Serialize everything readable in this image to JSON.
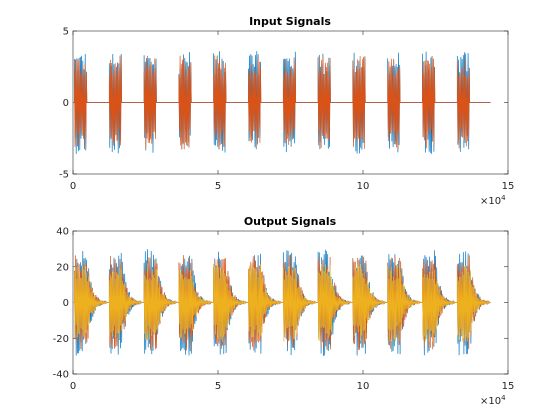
{
  "chart_data": [
    {
      "type": "line",
      "title": "Input Signals",
      "xlabel": "",
      "ylabel": "",
      "xlim": [
        0,
        150000
      ],
      "ylim": [
        -5,
        5
      ],
      "x_ticks": [
        0,
        5,
        10,
        15
      ],
      "x_tick_labels": [
        "0",
        "5",
        "10",
        "15"
      ],
      "x_exponent_label": "×10",
      "x_exponent_power": "4",
      "y_ticks": [
        -5,
        0,
        5
      ],
      "y_tick_labels": [
        "-5",
        "0",
        "5"
      ],
      "x_end": 144000,
      "burst_starts": [
        0,
        12000,
        24000,
        36000,
        48000,
        60000,
        72000,
        84000,
        96000,
        108000,
        120000,
        132000
      ],
      "burst_duration": 4300,
      "series": [
        {
          "color": "#0072BD",
          "amplitude": 3.6,
          "decay": 0.0
        },
        {
          "color": "#D95319",
          "amplitude": 3.3,
          "decay": 0.0
        }
      ]
    },
    {
      "type": "line",
      "title": "Output Signals",
      "xlabel": "",
      "ylabel": "",
      "xlim": [
        0,
        150000
      ],
      "ylim": [
        -40,
        40
      ],
      "x_ticks": [
        0,
        5,
        10,
        15
      ],
      "x_tick_labels": [
        "0",
        "5",
        "10",
        "15"
      ],
      "x_exponent_label": "×10",
      "x_exponent_power": "4",
      "y_ticks": [
        -40,
        -20,
        0,
        20,
        40
      ],
      "y_tick_labels": [
        "-40",
        "-20",
        "0",
        "20",
        "40"
      ],
      "x_end": 144000,
      "burst_starts": [
        0,
        12000,
        24000,
        36000,
        48000,
        60000,
        72000,
        84000,
        96000,
        108000,
        120000,
        132000
      ],
      "burst_duration": 4300,
      "tail_duration": 7000,
      "series": [
        {
          "color": "#0072BD",
          "amplitude": 30
        },
        {
          "color": "#D95319",
          "amplitude": 27
        },
        {
          "color": "#EDB120",
          "amplitude": 22
        }
      ]
    }
  ]
}
